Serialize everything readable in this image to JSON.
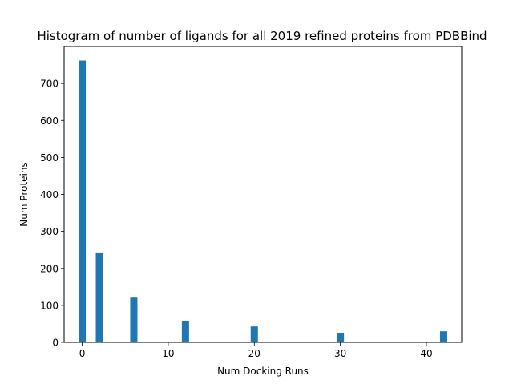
{
  "chart_data": {
    "type": "bar",
    "title": "Histogram of number of ligands for all 2019 refined proteins from PDBBind",
    "xlabel": "Num Docking Runs",
    "ylabel": "Num Proteins",
    "xlim": [
      -2.1,
      44.1
    ],
    "ylim": [
      0,
      800
    ],
    "grid": false,
    "bin_width": 0.84,
    "bins": [
      {
        "x": 0,
        "value": 762
      },
      {
        "x": 2,
        "value": 243
      },
      {
        "x": 6,
        "value": 121
      },
      {
        "x": 12,
        "value": 58
      },
      {
        "x": 20,
        "value": 43
      },
      {
        "x": 30,
        "value": 26
      },
      {
        "x": 42,
        "value": 30
      }
    ],
    "xticks": [
      0,
      10,
      20,
      30,
      40
    ],
    "yticks": [
      0,
      100,
      200,
      300,
      400,
      500,
      600,
      700
    ],
    "bar_color": "#1f77b4"
  }
}
